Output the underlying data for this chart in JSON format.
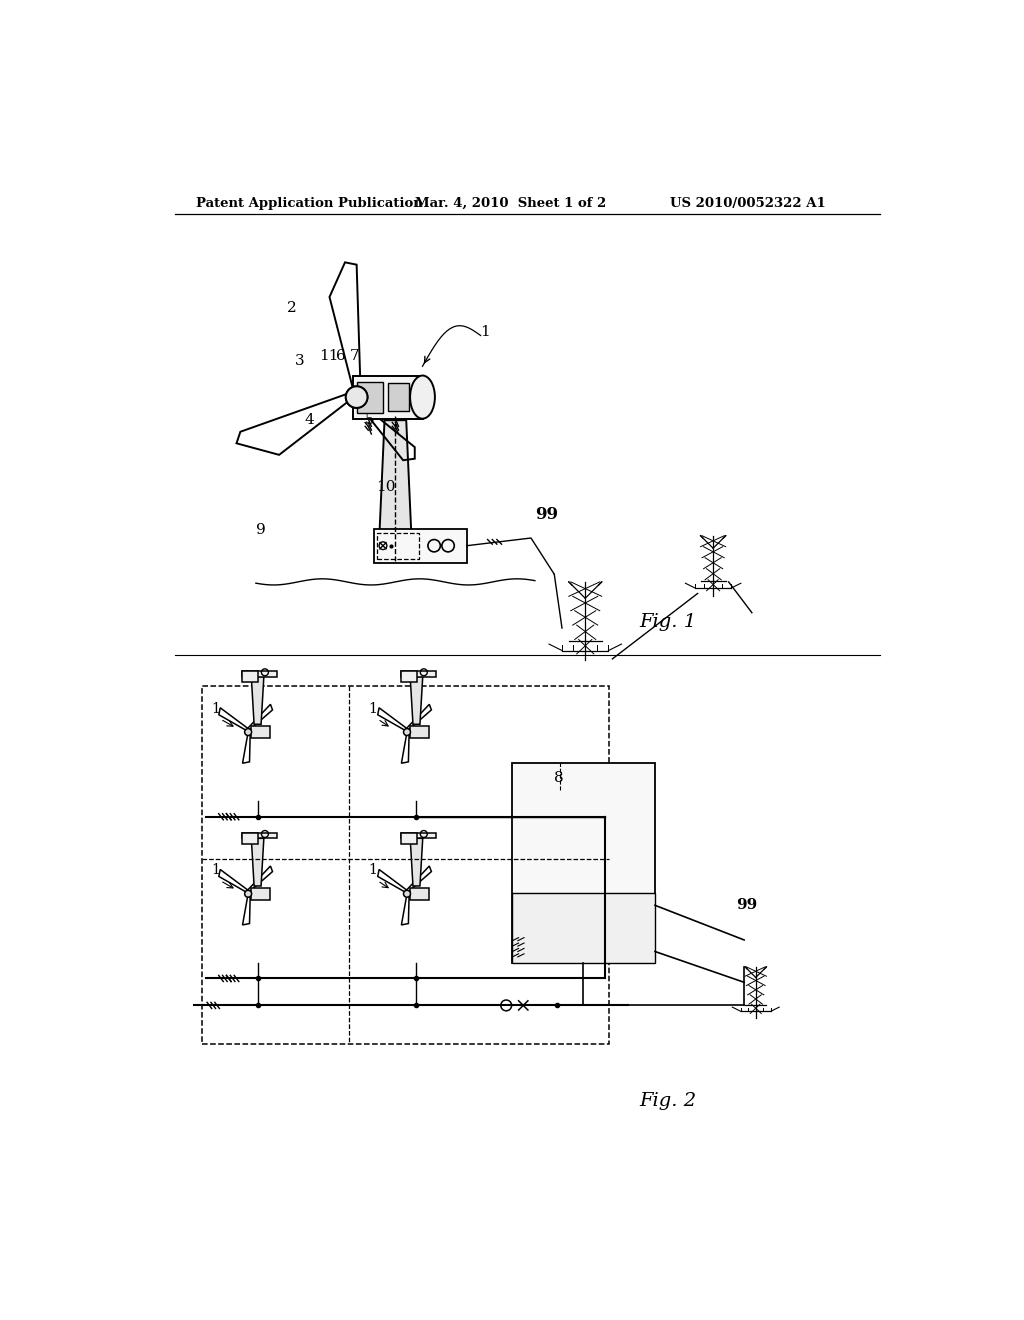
{
  "bg_color": "#ffffff",
  "header_left": "Patent Application Publication",
  "header_center": "Mar. 4, 2010  Sheet 1 of 2",
  "header_right": "US 2010/0052322 A1",
  "fig1_label": "Fig. 1",
  "fig2_label": "Fig. 2",
  "text_color": "#000000",
  "line_color": "#000000"
}
